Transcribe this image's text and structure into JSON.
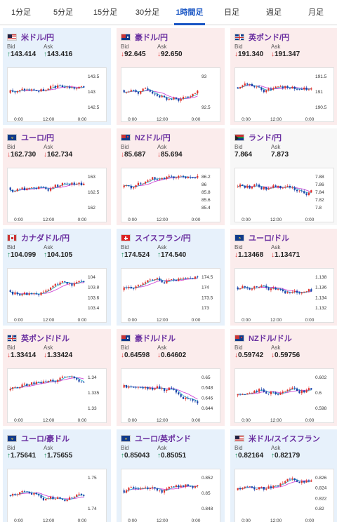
{
  "tabs": [
    {
      "label": "1分足",
      "active": false
    },
    {
      "label": "5分足",
      "active": false
    },
    {
      "label": "15分足",
      "active": false
    },
    {
      "label": "30分足",
      "active": false
    },
    {
      "label": "1時間足",
      "active": true
    },
    {
      "label": "日足",
      "active": false
    },
    {
      "label": "週足",
      "active": false
    },
    {
      "label": "月足",
      "active": false
    }
  ],
  "labels": {
    "bid": "Bid",
    "ask": "Ask"
  },
  "cards": [
    {
      "pair": "米ドル/円",
      "bg": "blue",
      "flag": "us",
      "dir": "up",
      "bid": "143.414",
      "ask": "143.416",
      "x_ticks": [
        "0:00",
        "12:00",
        "0:00"
      ],
      "y_ticks": [
        "143.5",
        "143",
        "142.5"
      ],
      "seed": 3
    },
    {
      "pair": "豪ドル/円",
      "bg": "red",
      "flag": "au",
      "dir": "dn",
      "bid": "92.645",
      "ask": "92.650",
      "x_ticks": [
        "0:00",
        "12:00",
        "0:00"
      ],
      "y_ticks": [
        "93",
        "92.5"
      ],
      "seed": 7
    },
    {
      "pair": "英ポンド/円",
      "bg": "red",
      "flag": "gb",
      "dir": "dn",
      "bid": "191.340",
      "ask": "191.347",
      "x_ticks": [
        "0:00",
        "12:00",
        "0:00"
      ],
      "y_ticks": [
        "191.5",
        "191",
        "190.5"
      ],
      "seed": 11
    },
    {
      "pair": "ユーロ/円",
      "bg": "red",
      "flag": "eu",
      "dir": "dn",
      "bid": "162.730",
      "ask": "162.734",
      "x_ticks": [
        "0:00",
        "12:00",
        "0:00"
      ],
      "y_ticks": [
        "163",
        "162.5",
        "162"
      ],
      "seed": 17
    },
    {
      "pair": "NZドル/円",
      "bg": "red",
      "flag": "nz",
      "dir": "dn",
      "bid": "85.687",
      "ask": "85.694",
      "x_ticks": [
        "0:00",
        "12:00",
        "0:00"
      ],
      "y_ticks": [
        "86.2",
        "86",
        "85.8",
        "85.6",
        "85.4"
      ],
      "seed": 23
    },
    {
      "pair": "ランド/円",
      "bg": "white",
      "flag": "za",
      "dir": "none",
      "bid": "7.864",
      "ask": "7.873",
      "x_ticks": [
        "0:00",
        "12:00",
        "0:00"
      ],
      "y_ticks": [
        "7.88",
        "7.86",
        "7.84",
        "7.82",
        "7.8"
      ],
      "seed": 29
    },
    {
      "pair": "カナダドル/円",
      "bg": "blue",
      "flag": "ca",
      "dir": "up",
      "bid": "104.099",
      "ask": "104.105",
      "x_ticks": [
        "0:00",
        "12:00",
        "0:00"
      ],
      "y_ticks": [
        "104",
        "103.8",
        "103.6",
        "103.4"
      ],
      "seed": 31
    },
    {
      "pair": "スイスフラン/円",
      "bg": "blue",
      "flag": "ch",
      "dir": "up",
      "bid": "174.524",
      "ask": "174.540",
      "x_ticks": [
        "0:00",
        "12:00",
        "0:00"
      ],
      "y_ticks": [
        "174.5",
        "174",
        "173.5",
        "173"
      ],
      "seed": 37
    },
    {
      "pair": "ユーロ/ドル",
      "bg": "red",
      "flag": "eu",
      "dir": "dn",
      "bid": "1.13468",
      "ask": "1.13471",
      "x_ticks": [
        "0:00",
        "12:00",
        "0:00"
      ],
      "y_ticks": [
        "1.138",
        "1.136",
        "1.134",
        "1.132"
      ],
      "seed": 41
    },
    {
      "pair": "英ポンド/ドル",
      "bg": "red",
      "flag": "gb",
      "dir": "dn",
      "bid": "1.33414",
      "ask": "1.33424",
      "x_ticks": [
        "0:00",
        "12:00",
        "0:00"
      ],
      "y_ticks": [
        "1.34",
        "1.335",
        "1.33"
      ],
      "seed": 43
    },
    {
      "pair": "豪ドル/ドル",
      "bg": "red",
      "flag": "au",
      "dir": "dn",
      "bid": "0.64598",
      "ask": "0.64602",
      "x_ticks": [
        "0:00",
        "12:00",
        "0:00"
      ],
      "y_ticks": [
        "0.65",
        "0.648",
        "0.646",
        "0.644"
      ],
      "seed": 47
    },
    {
      "pair": "NZドル/ドル",
      "bg": "red",
      "flag": "nz",
      "dir": "dn",
      "bid": "0.59742",
      "ask": "0.59756",
      "x_ticks": [
        "0:00",
        "12:00",
        "0:00"
      ],
      "y_ticks": [
        "0.602",
        "0.6",
        "0.598"
      ],
      "seed": 53
    },
    {
      "pair": "ユーロ/豪ドル",
      "bg": "blue",
      "flag": "eu",
      "dir": "up",
      "bid": "1.75641",
      "ask": "1.75655",
      "x_ticks": [
        "0:00",
        "12:00",
        "0:00"
      ],
      "y_ticks": [
        "1.75",
        "1.74"
      ],
      "seed": 59
    },
    {
      "pair": "ユーロ/英ポンド",
      "bg": "blue",
      "flag": "eu",
      "dir": "up",
      "bid": "0.85043",
      "ask": "0.85051",
      "x_ticks": [
        "0:00",
        "12:00",
        "0:00"
      ],
      "y_ticks": [
        "0.852",
        "0.85",
        "0.848"
      ],
      "seed": 61
    },
    {
      "pair": "米ドル/スイスフラン",
      "bg": "blue",
      "flag": "us",
      "dir": "up",
      "bid": "0.82164",
      "ask": "0.82179",
      "x_ticks": [
        "0:00",
        "12:00",
        "0:00"
      ],
      "y_ticks": [
        "0.826",
        "0.824",
        "0.822",
        "0.82"
      ],
      "seed": 67
    }
  ],
  "colors": {
    "up_candle": "#e0302a",
    "down_candle": "#1a3fa8",
    "ma_pink": "#d04ad8",
    "ma_cyan": "#2bb3c9",
    "arrow_up": "#1a8f5a",
    "arrow_dn": "#d33",
    "pair_text": "#6a2fa0",
    "active_tab": "#1a56c4"
  }
}
